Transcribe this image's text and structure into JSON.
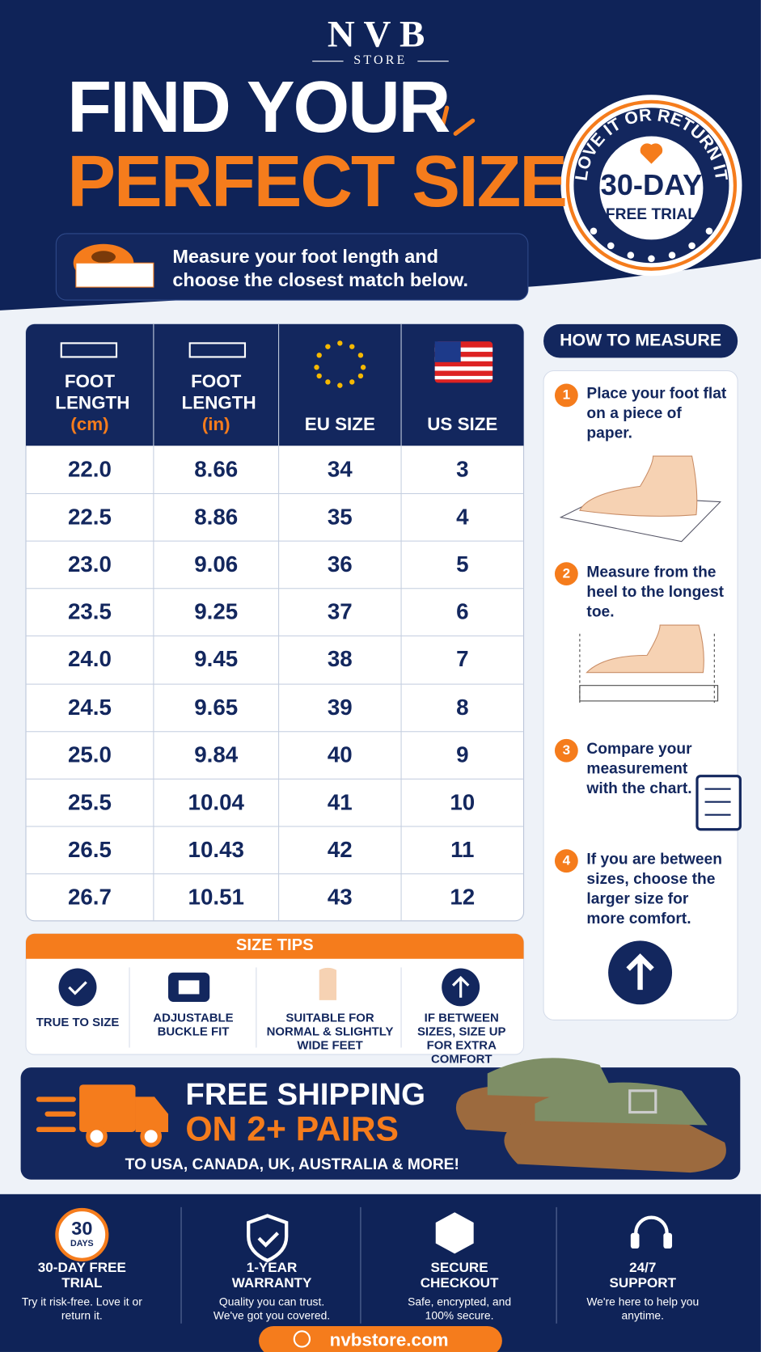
{
  "brand": {
    "name": "NVB",
    "sub": "STORE"
  },
  "headline": {
    "line1": "FIND YOUR",
    "line2": "PERFECT SIZE"
  },
  "badge": {
    "arc": "LOVE IT OR RETURN IT",
    "big": "30-DAY",
    "small": "FREE TRIAL"
  },
  "intro": "Measure your foot length and choose the closest match below.",
  "table": {
    "headers": [
      {
        "label": "FOOT LENGTH",
        "unit": "(cm)"
      },
      {
        "label": "FOOT LENGTH",
        "unit": "(in)"
      },
      {
        "label": "EU SIZE"
      },
      {
        "label": "US SIZE"
      }
    ],
    "rows": [
      [
        "22.0",
        "8.66",
        "34",
        "3"
      ],
      [
        "22.5",
        "8.86",
        "35",
        "4"
      ],
      [
        "23.0",
        "9.06",
        "36",
        "5"
      ],
      [
        "23.5",
        "9.25",
        "37",
        "6"
      ],
      [
        "24.0",
        "9.45",
        "38",
        "7"
      ],
      [
        "24.5",
        "9.65",
        "39",
        "8"
      ],
      [
        "25.0",
        "9.84",
        "40",
        "9"
      ],
      [
        "25.5",
        "10.04",
        "41",
        "10"
      ],
      [
        "26.5",
        "10.43",
        "42",
        "11"
      ],
      [
        "26.7",
        "10.51",
        "43",
        "12"
      ]
    ]
  },
  "how_to": {
    "title": "HOW TO MEASURE",
    "steps": [
      {
        "number": "1",
        "text": "Place your foot flat on a piece of paper."
      },
      {
        "number": "2",
        "text": "Measure from the heel to the longest toe."
      },
      {
        "number": "3",
        "text": "Compare your measurement with the chart."
      },
      {
        "number": "4",
        "text": "If you are between sizes, choose the larger size for more comfort."
      }
    ]
  },
  "tips": {
    "title": "SIZE TIPS",
    "items": [
      "TRUE TO SIZE",
      "ADJUSTABLE BUCKLE FIT",
      "SUITABLE FOR NORMAL & SLIGHTLY WIDE FEET",
      "IF BETWEEN SIZES, SIZE UP FOR EXTRA COMFORT"
    ]
  },
  "shipping": {
    "line1": "FREE SHIPPING",
    "line2": "ON 2+ PAIRS",
    "sub": "TO USA, CANADA, UK, AUSTRALIA & MORE!"
  },
  "features": [
    {
      "badge_number": "30",
      "badge_unit": "DAYS",
      "title": "30-DAY FREE TRIAL",
      "text": "Try it risk-free. Love it or return it."
    },
    {
      "title": "1-YEAR WARRANTY",
      "text": "Quality you can trust. We've got you covered."
    },
    {
      "title": "SECURE CHECKOUT",
      "text": "Safe, encrypted, and 100% secure."
    },
    {
      "title": "24/7 SUPPORT",
      "text": "We're here to help you anytime."
    }
  ],
  "footer": {
    "url": "nvbstore.com"
  }
}
